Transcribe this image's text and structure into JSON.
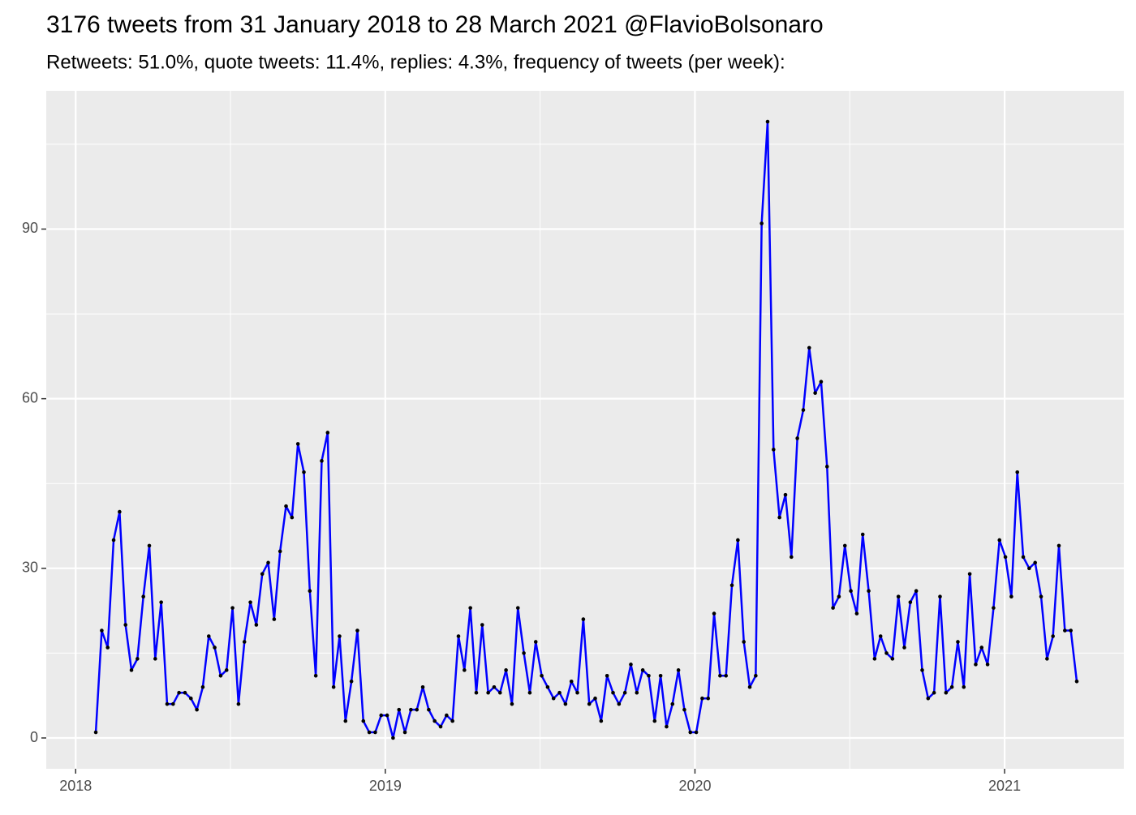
{
  "chart_data": {
    "type": "line",
    "title": "3176 tweets from 31 January 2018 to 28 March 2021 @FlavioBolsonaro",
    "subtitle": "Retweets: 51.0%, quote tweets: 11.4%, replies: 4.3%, frequency of tweets (per week):",
    "x": [
      2018.065,
      2018.0842,
      2018.1034,
      2018.1226,
      2018.1418,
      2018.161,
      2018.1802,
      2018.1994,
      2018.2186,
      2018.2378,
      2018.257,
      2018.2762,
      2018.2954,
      2018.3146,
      2018.3338,
      2018.353,
      2018.3722,
      2018.3914,
      2018.4106,
      2018.4298,
      2018.449,
      2018.4682,
      2018.4874,
      2018.5066,
      2018.5258,
      2018.545,
      2018.5642,
      2018.5834,
      2018.6026,
      2018.6218,
      2018.641,
      2018.6602,
      2018.6794,
      2018.6986,
      2018.7178,
      2018.737,
      2018.7562,
      2018.7754,
      2018.7946,
      2018.8138,
      2018.833,
      2018.8522,
      2018.8714,
      2018.8906,
      2018.9098,
      2018.929,
      2018.9482,
      2018.9674,
      2018.9866,
      2019.0058,
      2019.025,
      2019.0442,
      2019.0634,
      2019.0826,
      2019.1018,
      2019.121,
      2019.1402,
      2019.1594,
      2019.1786,
      2019.1978,
      2019.217,
      2019.2362,
      2019.2554,
      2019.2746,
      2019.2938,
      2019.313,
      2019.3322,
      2019.3514,
      2019.3706,
      2019.3898,
      2019.409,
      2019.4282,
      2019.4474,
      2019.4666,
      2019.4858,
      2019.505,
      2019.5242,
      2019.5434,
      2019.5626,
      2019.5818,
      2019.601,
      2019.6202,
      2019.6394,
      2019.6586,
      2019.6778,
      2019.697,
      2019.7162,
      2019.7354,
      2019.7546,
      2019.7738,
      2019.793,
      2019.8122,
      2019.8314,
      2019.8506,
      2019.8698,
      2019.889,
      2019.9082,
      2019.9274,
      2019.9466,
      2019.9658,
      2019.985,
      2020.0042,
      2020.0234,
      2020.0426,
      2020.0618,
      2020.081,
      2020.1002,
      2020.1194,
      2020.1386,
      2020.1578,
      2020.177,
      2020.1962,
      2020.2154,
      2020.2346,
      2020.2538,
      2020.273,
      2020.2922,
      2020.3114,
      2020.3306,
      2020.3498,
      2020.369,
      2020.3882,
      2020.4074,
      2020.4266,
      2020.4458,
      2020.465,
      2020.4842,
      2020.5034,
      2020.5226,
      2020.5418,
      2020.561,
      2020.5802,
      2020.5994,
      2020.6186,
      2020.6378,
      2020.657,
      2020.6762,
      2020.6954,
      2020.7146,
      2020.7338,
      2020.753,
      2020.7722,
      2020.7914,
      2020.8106,
      2020.8298,
      2020.849,
      2020.8682,
      2020.8874,
      2020.9066,
      2020.9258,
      2020.945,
      2020.9642,
      2020.9834,
      2021.0026,
      2021.0218,
      2021.041,
      2021.0602,
      2021.0794,
      2021.0986,
      2021.1178,
      2021.137,
      2021.1562,
      2021.1754,
      2021.1946,
      2021.2138,
      2021.233
    ],
    "values": [
      1,
      19,
      16,
      35,
      40,
      20,
      12,
      14,
      25,
      34,
      14,
      24,
      6,
      6,
      8,
      8,
      7,
      5,
      9,
      18,
      16,
      11,
      12,
      23,
      6,
      17,
      24,
      20,
      29,
      31,
      21,
      33,
      41,
      39,
      52,
      47,
      26,
      11,
      49,
      54,
      9,
      18,
      3,
      10,
      19,
      3,
      1,
      1,
      4,
      4,
      0,
      5,
      1,
      5,
      5,
      9,
      5,
      3,
      2,
      4,
      3,
      18,
      12,
      23,
      8,
      20,
      8,
      9,
      8,
      12,
      6,
      23,
      15,
      8,
      17,
      11,
      9,
      7,
      8,
      6,
      10,
      8,
      21,
      6,
      7,
      3,
      11,
      8,
      6,
      8,
      13,
      8,
      12,
      11,
      3,
      11,
      2,
      6,
      12,
      5,
      1,
      1,
      7,
      7,
      22,
      11,
      11,
      27,
      35,
      17,
      9,
      11,
      91,
      109,
      51,
      39,
      43,
      32,
      53,
      58,
      69,
      61,
      63,
      48,
      23,
      25,
      34,
      26,
      22,
      36,
      26,
      14,
      18,
      15,
      14,
      25,
      16,
      24,
      26,
      12,
      7,
      8,
      25,
      8,
      9,
      17,
      9,
      29,
      13,
      16,
      13,
      23,
      35,
      32,
      25,
      47,
      32,
      30,
      31,
      25,
      14,
      18,
      34,
      19,
      19,
      10
    ],
    "color": "#0000ff",
    "point_color": "#000000",
    "xlim": [
      2017.905,
      2021.385
    ],
    "xticks": [
      2018,
      2019,
      2020,
      2021
    ],
    "ylim": [
      -5.45,
      114.45
    ],
    "yticks": [
      0,
      30,
      60,
      90
    ],
    "grid": true
  }
}
